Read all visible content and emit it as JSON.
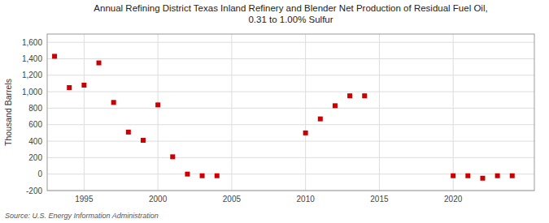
{
  "chart_data": {
    "type": "scatter",
    "title": "Annual Refining District Texas Inland Refinery and Blender Net Production of Residual Fuel Oil,\n0.31 to 1.00% Sulfur",
    "ylabel": "Thousand Barrels",
    "source": "Source: U.S. Energy Information Administration",
    "color": "#cc0000",
    "marker": "square",
    "grid": true,
    "xlim": [
      1992.5,
      2025.5
    ],
    "xticks": [
      1995,
      2000,
      2005,
      2010,
      2015,
      2020
    ],
    "ylim": [
      -200,
      1700
    ],
    "yticks": [
      -200,
      0,
      200,
      400,
      600,
      800,
      {
        "value": 1000,
        "label": "1,000"
      },
      {
        "value": 1200,
        "label": "1,200"
      },
      {
        "value": 1400,
        "label": "1,400"
      },
      {
        "value": 1600,
        "label": "1,600"
      }
    ],
    "x": [
      1993,
      1994,
      1995,
      1996,
      1997,
      1998,
      1999,
      2000,
      2001,
      2002,
      2003,
      2004,
      2010,
      2011,
      2012,
      2013,
      2014,
      2020,
      2021,
      2022,
      2023,
      2024
    ],
    "values": [
      1430,
      1050,
      1080,
      1350,
      870,
      510,
      410,
      840,
      210,
      0,
      -20,
      -20,
      500,
      670,
      830,
      950,
      950,
      -20,
      -20,
      -50,
      -20,
      -20
    ]
  }
}
